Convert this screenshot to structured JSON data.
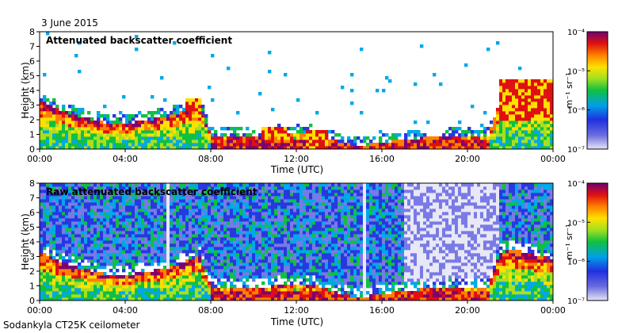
{
  "date_label": "3 June 2015",
  "footer_label": "Sodankyla CT25K ceilometer",
  "chart_data": [
    {
      "type": "heatmap",
      "title": "Attenuated backscatter coefficient",
      "xlabel": "Time (UTC)",
      "ylabel": "Height (km)",
      "x_ticks": [
        "00:00",
        "04:00",
        "08:00",
        "12:00",
        "16:00",
        "20:00",
        "00:00"
      ],
      "y_ticks": [
        "0",
        "1",
        "2",
        "3",
        "4",
        "5",
        "6",
        "7",
        "8"
      ],
      "xlim_hours": [
        0,
        24
      ],
      "ylim_km": [
        0,
        8
      ],
      "colorbar": {
        "label": "m⁻¹ sr⁻¹",
        "scale": "log",
        "ticks": [
          "10⁻⁷",
          "10⁻⁶",
          "10⁻⁵",
          "10⁻⁴"
        ],
        "range": [
          1e-07,
          0.0001
        ]
      },
      "boundary_layer_top_km": [
        [
          0,
          3.3
        ],
        [
          1,
          2.6
        ],
        [
          2,
          2.2
        ],
        [
          3,
          1.8
        ],
        [
          4,
          1.7
        ],
        [
          5,
          2.0
        ],
        [
          6,
          2.2
        ],
        [
          6.5,
          2.5
        ],
        [
          7,
          2.8
        ],
        [
          7.5,
          3.0
        ],
        [
          8,
          0.9
        ],
        [
          9,
          0.9
        ],
        [
          10,
          0.8
        ],
        [
          11,
          1.0
        ],
        [
          12,
          1.2
        ],
        [
          13,
          1.0
        ],
        [
          14,
          0.5
        ],
        [
          15,
          0.2
        ],
        [
          16,
          0.5
        ],
        [
          17,
          0.6
        ],
        [
          18,
          0.8
        ],
        [
          19,
          0.8
        ],
        [
          20,
          0.9
        ],
        [
          21,
          0.9
        ],
        [
          21.5,
          3.2
        ],
        [
          22,
          3.5
        ],
        [
          23,
          3.2
        ],
        [
          24,
          2.8
        ]
      ],
      "clouds": [
        {
          "t0": 21.5,
          "t1": 24,
          "h0": 2.0,
          "h1": 4.8
        },
        {
          "t0": 6.8,
          "t1": 7.5,
          "h0": 2.5,
          "h1": 3.5
        },
        {
          "t0": 10.3,
          "t1": 11.5,
          "h0": 0.8,
          "h1": 1.5
        },
        {
          "t0": 12.5,
          "t1": 13.5,
          "h0": 0.0,
          "h1": 1.2
        }
      ]
    },
    {
      "type": "heatmap",
      "title": "Raw attenuated backscatter coefficient",
      "xlabel": "Time (UTC)",
      "ylabel": "Height (km)",
      "x_ticks": [
        "00:00",
        "04:00",
        "08:00",
        "12:00",
        "16:00",
        "20:00",
        "00:00"
      ],
      "y_ticks": [
        "0",
        "1",
        "2",
        "3",
        "4",
        "5",
        "6",
        "7",
        "8"
      ],
      "xlim_hours": [
        0,
        24
      ],
      "ylim_km": [
        0,
        8
      ],
      "colorbar": {
        "label": "m⁻¹ sr⁻¹",
        "scale": "log",
        "ticks": [
          "10⁻⁷",
          "10⁻⁶",
          "10⁻⁵",
          "10⁻⁴"
        ],
        "range": [
          1e-07,
          0.0001
        ]
      }
    }
  ]
}
